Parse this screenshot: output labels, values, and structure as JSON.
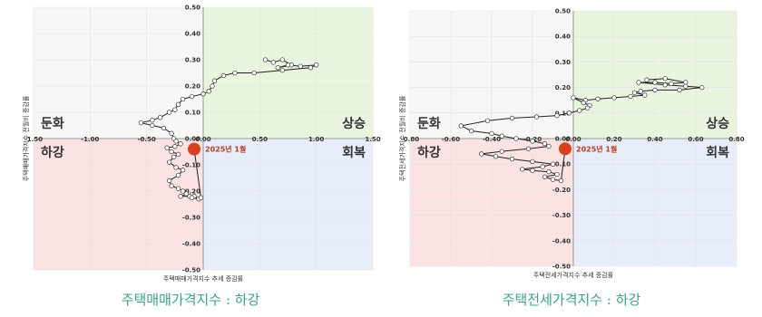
{
  "chart_data": [
    {
      "type": "scatter",
      "connected": true,
      "title": "",
      "xlabel": "주택매매가격지수 추세 증감률",
      "ylabel": "주택매매가격지수 전월비 증감률",
      "xlim": [
        -1.5,
        1.5
      ],
      "ylim": [
        -0.5,
        0.5
      ],
      "x_ticks": [
        "-1.50",
        "-1.00",
        "-0.50",
        "0.00",
        "0.50",
        "1.00",
        "1.50"
      ],
      "y_ticks": [
        "0.50",
        "0.40",
        "0.30",
        "0.20",
        "0.10",
        "0.00",
        "-0.10",
        "-0.20",
        "-0.30",
        "-0.40",
        "-0.50"
      ],
      "quadrants": {
        "top_left": "둔화",
        "top_right": "상승",
        "bottom_left": "하강",
        "bottom_right": "회복"
      },
      "quadrant_colors": {
        "top_left": "#f7f7f7",
        "top_right": "#eaf5e0",
        "bottom_left": "#fbe3e3",
        "bottom_right": "#e8eef9"
      },
      "annotation": {
        "label": "2025년 1월",
        "x": -0.08,
        "y": -0.04,
        "color": "#d9411e"
      },
      "points": [
        [
          0.55,
          0.3
        ],
        [
          0.62,
          0.29
        ],
        [
          0.7,
          0.3
        ],
        [
          0.78,
          0.28
        ],
        [
          0.66,
          0.27
        ],
        [
          0.75,
          0.28
        ],
        [
          0.86,
          0.275
        ],
        [
          1.0,
          0.28
        ],
        [
          0.95,
          0.27
        ],
        [
          0.7,
          0.26
        ],
        [
          0.45,
          0.25
        ],
        [
          0.28,
          0.25
        ],
        [
          0.18,
          0.24
        ],
        [
          0.1,
          0.22
        ],
        [
          0.08,
          0.2
        ],
        [
          0.05,
          0.18
        ],
        [
          0.0,
          0.17
        ],
        [
          -0.1,
          0.16
        ],
        [
          -0.18,
          0.15
        ],
        [
          -0.22,
          0.13
        ],
        [
          -0.25,
          0.11
        ],
        [
          -0.3,
          0.1
        ],
        [
          -0.38,
          0.08
        ],
        [
          -0.45,
          0.07
        ],
        [
          -0.55,
          0.06
        ],
        [
          -0.45,
          0.05
        ],
        [
          -0.35,
          0.04
        ],
        [
          -0.28,
          0.02
        ],
        [
          -0.26,
          0.0
        ],
        [
          -0.24,
          -0.01
        ],
        [
          -0.2,
          -0.02
        ],
        [
          -0.25,
          -0.03
        ],
        [
          -0.32,
          -0.035
        ],
        [
          -0.28,
          -0.05
        ],
        [
          -0.22,
          -0.06
        ],
        [
          -0.26,
          -0.07
        ],
        [
          -0.3,
          -0.09
        ],
        [
          -0.24,
          -0.11
        ],
        [
          -0.18,
          -0.12
        ],
        [
          -0.22,
          -0.14
        ],
        [
          -0.3,
          -0.16
        ],
        [
          -0.28,
          -0.18
        ],
        [
          -0.22,
          -0.19
        ],
        [
          -0.18,
          -0.2
        ],
        [
          -0.15,
          -0.21
        ],
        [
          -0.2,
          -0.22
        ],
        [
          -0.12,
          -0.22
        ],
        [
          -0.08,
          -0.22
        ],
        [
          -0.04,
          -0.23
        ],
        [
          -0.1,
          -0.225
        ],
        [
          -0.02,
          -0.225
        ],
        [
          -0.08,
          -0.04
        ]
      ],
      "caption": "주택매매가격지수 : 하강"
    },
    {
      "type": "scatter",
      "connected": true,
      "title": "",
      "xlabel": "주택전세가격지수 추세 증감률",
      "ylabel": "주택전세가격지수 전월비 증감률",
      "xlim": [
        -0.8,
        0.8
      ],
      "ylim": [
        -0.5,
        0.5
      ],
      "x_ticks": [
        "-0.80",
        "-0.60",
        "-0.40",
        "-0.20",
        "0.00",
        "0.20",
        "0.40",
        "0.60",
        "0.80"
      ],
      "y_ticks": [
        "0.50",
        "0.40",
        "0.30",
        "0.20",
        "0.10",
        "0.00",
        "-0.10",
        "-0.20",
        "-0.30",
        "-0.40",
        "-0.50"
      ],
      "quadrants": {
        "top_left": "둔화",
        "top_right": "상승",
        "bottom_left": "하강",
        "bottom_right": "회복"
      },
      "quadrant_colors": {
        "top_left": "#f7f7f7",
        "top_right": "#eaf5e0",
        "bottom_left": "#fbe3e3",
        "bottom_right": "#e8eef9"
      },
      "annotation": {
        "label": "2025년 1월",
        "x": -0.04,
        "y": -0.04,
        "color": "#d9411e"
      },
      "points": [
        [
          0.36,
          0.23
        ],
        [
          0.45,
          0.235
        ],
        [
          0.55,
          0.22
        ],
        [
          0.48,
          0.215
        ],
        [
          0.4,
          0.22
        ],
        [
          0.32,
          0.22
        ],
        [
          0.45,
          0.21
        ],
        [
          0.55,
          0.205
        ],
        [
          0.63,
          0.2
        ],
        [
          0.52,
          0.19
        ],
        [
          0.4,
          0.19
        ],
        [
          0.33,
          0.185
        ],
        [
          0.3,
          0.18
        ],
        [
          0.35,
          0.17
        ],
        [
          0.28,
          0.165
        ],
        [
          0.2,
          0.16
        ],
        [
          0.12,
          0.155
        ],
        [
          0.06,
          0.15
        ],
        [
          0.0,
          0.16
        ],
        [
          0.05,
          0.14
        ],
        [
          0.08,
          0.13
        ],
        [
          0.07,
          0.12
        ],
        [
          0.03,
          0.11
        ],
        [
          -0.02,
          0.1
        ],
        [
          -0.08,
          0.09
        ],
        [
          -0.18,
          0.085
        ],
        [
          -0.3,
          0.08
        ],
        [
          -0.42,
          0.07
        ],
        [
          -0.55,
          0.05
        ],
        [
          -0.5,
          0.03
        ],
        [
          -0.4,
          0.02
        ],
        [
          -0.35,
          0.01
        ],
        [
          -0.28,
          0.0
        ],
        [
          -0.2,
          -0.01
        ],
        [
          -0.14,
          -0.02
        ],
        [
          -0.12,
          -0.03
        ],
        [
          -0.22,
          -0.04
        ],
        [
          -0.35,
          -0.05
        ],
        [
          -0.45,
          -0.06
        ],
        [
          -0.38,
          -0.07
        ],
        [
          -0.3,
          -0.08
        ],
        [
          -0.2,
          -0.09
        ],
        [
          -0.1,
          -0.1
        ],
        [
          -0.15,
          -0.11
        ],
        [
          -0.25,
          -0.12
        ],
        [
          -0.2,
          -0.125
        ],
        [
          -0.12,
          -0.13
        ],
        [
          -0.08,
          -0.14
        ],
        [
          -0.14,
          -0.15
        ],
        [
          -0.1,
          -0.16
        ],
        [
          -0.06,
          -0.165
        ],
        [
          -0.04,
          -0.04
        ]
      ],
      "caption": "주택전세가격지수 : 하강"
    }
  ]
}
